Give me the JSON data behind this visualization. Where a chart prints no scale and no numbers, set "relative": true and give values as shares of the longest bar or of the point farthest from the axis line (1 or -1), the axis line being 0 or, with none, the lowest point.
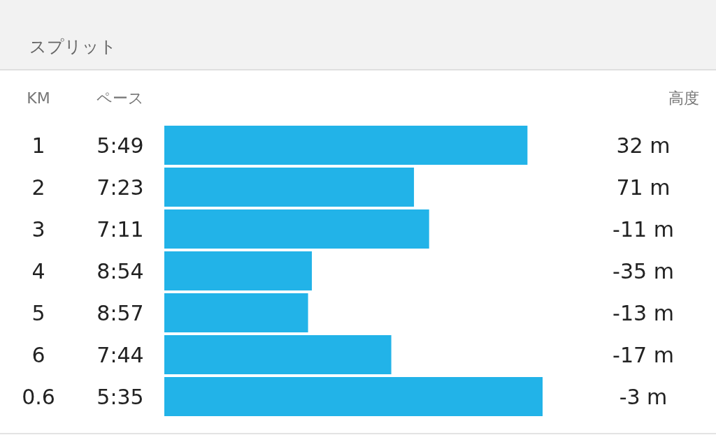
{
  "chart_data": {
    "type": "bar",
    "orientation": "horizontal",
    "relative": true,
    "title": "スプリット",
    "ylabel": "KM",
    "xlabel": "ペース",
    "color": "#22b3e8",
    "categories": [
      "1",
      "2",
      "3",
      "4",
      "5",
      "6",
      "0.6"
    ],
    "values": [
      0.96,
      0.66,
      0.7,
      0.39,
      0.38,
      0.6,
      1
    ],
    "annotations": [
      "高度",
      "5:49",
      "7:23",
      "7:11",
      "8:54",
      "8:57",
      "7:44",
      "5:35",
      "32 m",
      "71 m",
      "-11 m",
      "-35 m",
      "-13 m",
      "-17 m",
      "-3 m"
    ]
  }
}
